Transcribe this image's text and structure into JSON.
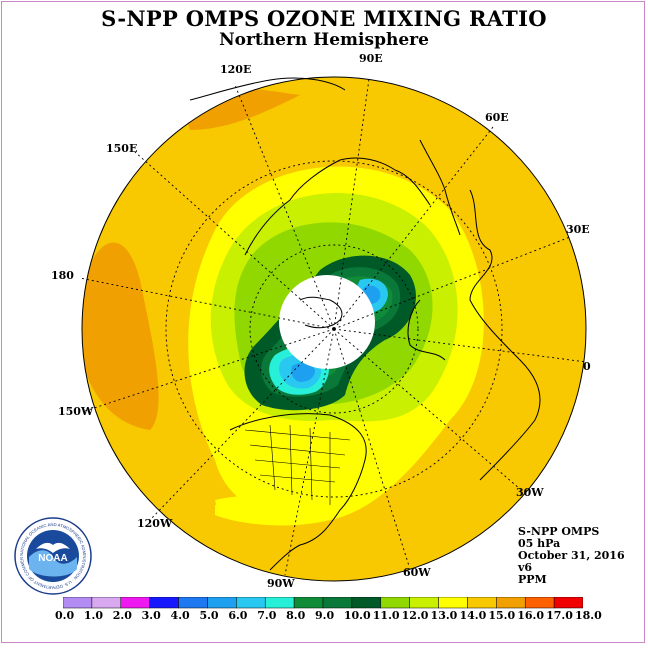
{
  "header": {
    "title": "S-NPP OMPS OZONE MIXING RATIO",
    "subtitle": "Northern Hemisphere"
  },
  "map": {
    "projection": "north polar stereographic",
    "longitude_labels": [
      "90E",
      "60E",
      "30E",
      "0",
      "30W",
      "60W",
      "90W",
      "120W",
      "150W",
      "180",
      "150E",
      "120E"
    ],
    "polar_night_region": "no data (white cap near pole)"
  },
  "info_block": {
    "instrument": "S-NPP OMPS",
    "level": "05 hPa",
    "date": "October 31, 2016",
    "version": "v6",
    "units": "PPM"
  },
  "colorbar": {
    "tick_labels": [
      "0.0",
      "1.0",
      "2.0",
      "3.0",
      "4.0",
      "5.0",
      "6.0",
      "7.0",
      "8.0",
      "9.0",
      "10.0",
      "11.0",
      "12.0",
      "13.0",
      "14.0",
      "15.0",
      "16.0",
      "17.0",
      "18.0"
    ],
    "colors": [
      "#b28cf2",
      "#d8a8f0",
      "#f018f0",
      "#1818ff",
      "#1e78f0",
      "#1ea0f0",
      "#28c8f0",
      "#28f0d8",
      "#108c38",
      "#0a7838",
      "#005a28",
      "#90d800",
      "#c8f000",
      "#ffff00",
      "#f8c800",
      "#f0a000",
      "#ff6000",
      "#f00000",
      "#8c5a3c"
    ]
  },
  "logo": {
    "name": "NOAA",
    "ring_text": "NATIONAL OCEANIC AND ATMOSPHERIC ADMINISTRATION · U.S. DEPARTMENT OF COMMERCE"
  }
}
